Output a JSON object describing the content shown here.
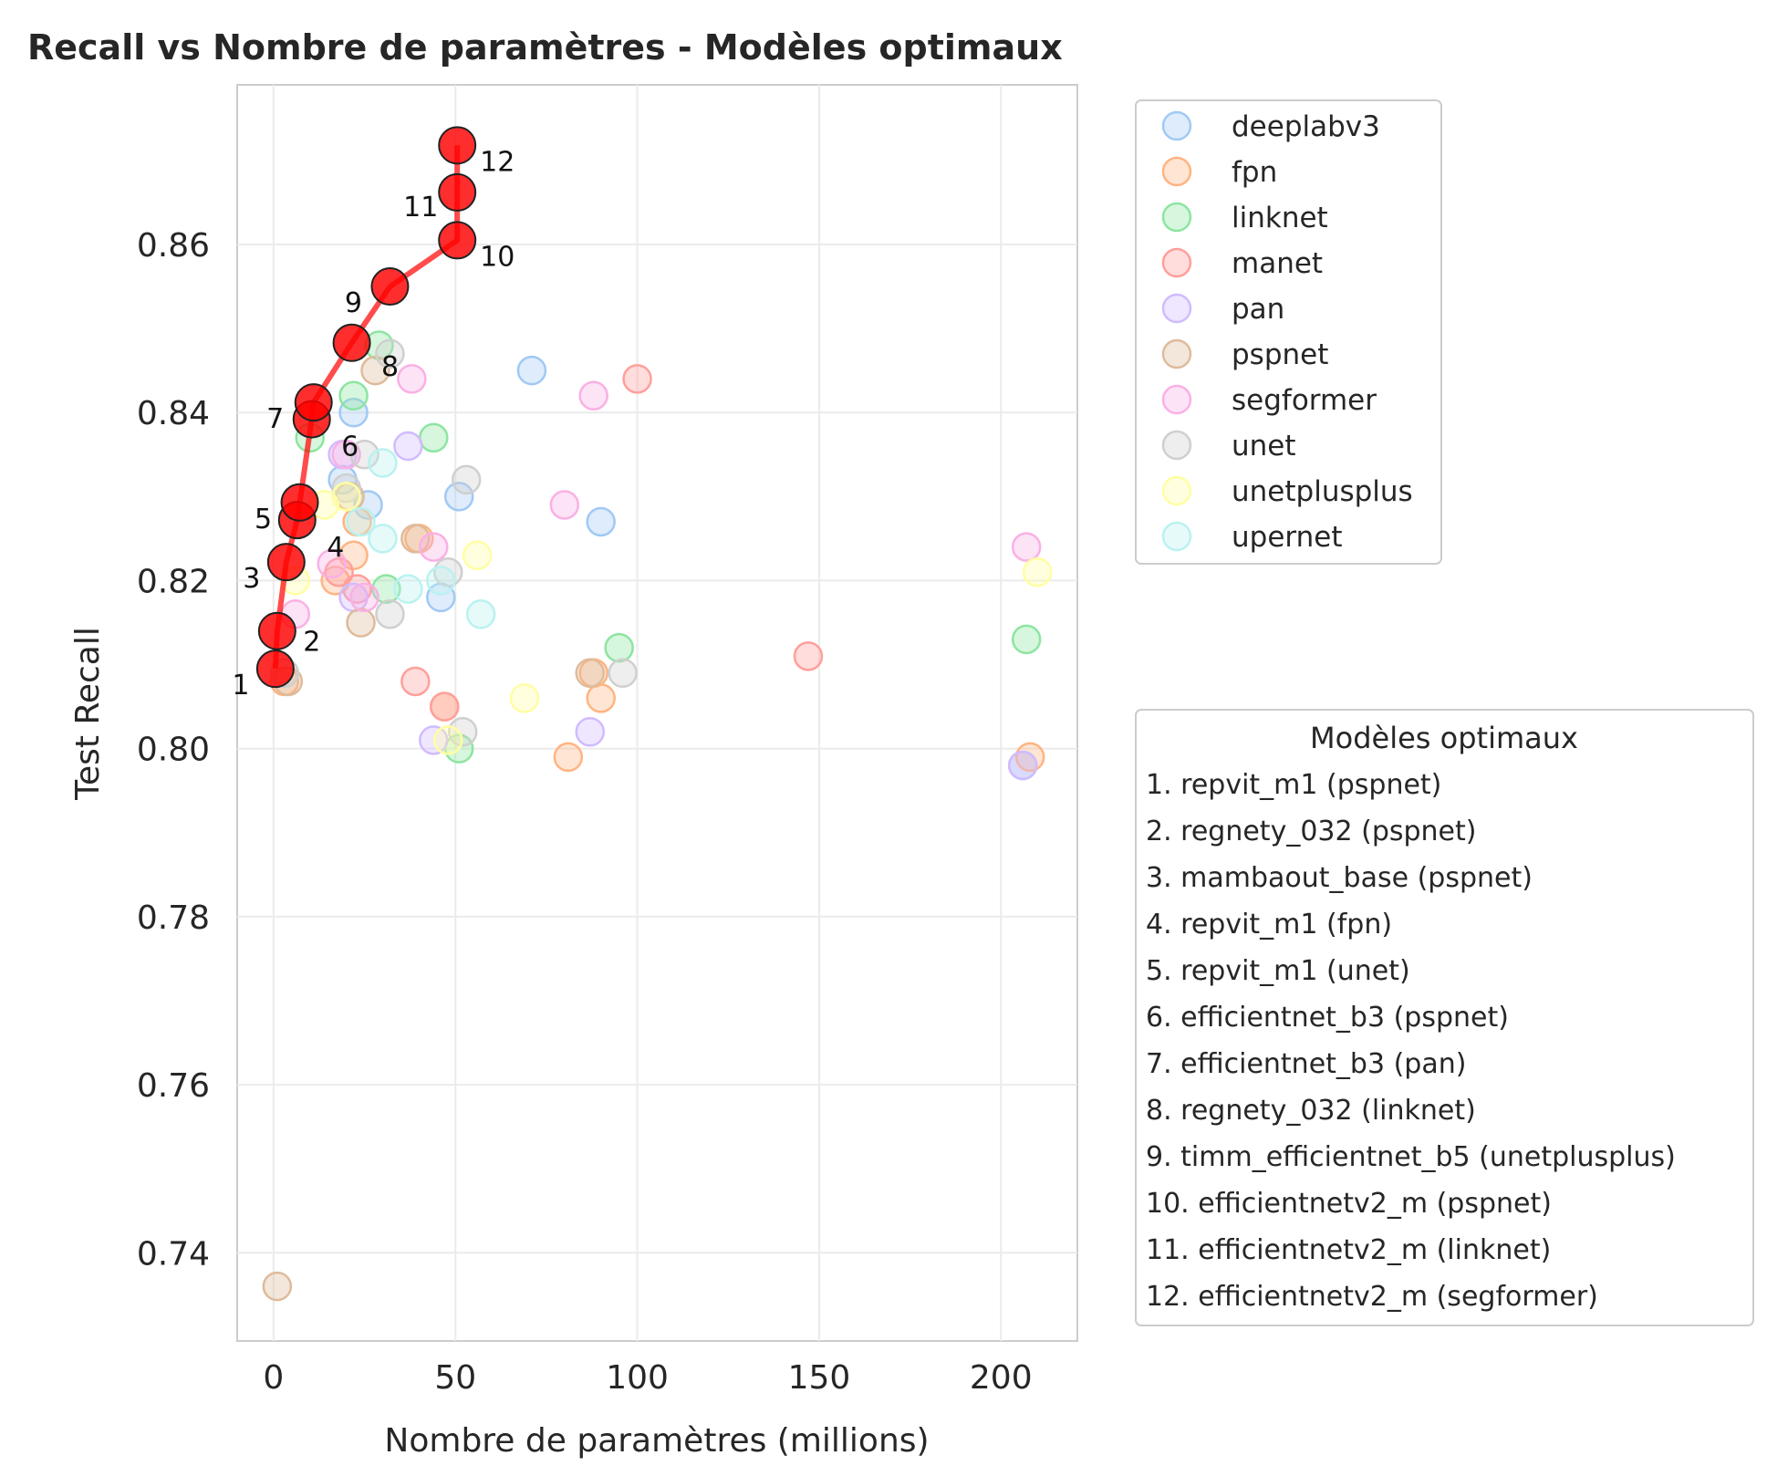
{
  "chart_data": {
    "type": "scatter",
    "title": "Recall vs Nombre de paramètres - Modèles optimaux",
    "xlabel": "Nombre de paramètres (millions)",
    "ylabel": "Test Recall",
    "xlim": [
      -10,
      221
    ],
    "ylim": [
      0.7295,
      0.879
    ],
    "xticks": [
      0,
      50,
      100,
      150,
      200
    ],
    "xtick_labels": [
      "0",
      "50",
      "100",
      "150",
      "200"
    ],
    "yticks": [
      0.74,
      0.76,
      0.78,
      0.8,
      0.82,
      0.84,
      0.86
    ],
    "ytick_labels": [
      "0.74",
      "0.76",
      "0.78",
      "0.80",
      "0.82",
      "0.84",
      "0.86"
    ],
    "grid": true,
    "legend": {
      "placement": "outside-right-top"
    },
    "series": [
      {
        "name": "deeplabv3",
        "color": "#a1c9f4",
        "points": [
          [
            19,
            0.832
          ],
          [
            22,
            0.84
          ],
          [
            26,
            0.829
          ],
          [
            46,
            0.818
          ],
          [
            51,
            0.83
          ],
          [
            71,
            0.845
          ],
          [
            90,
            0.827
          ],
          [
            206,
            0.798
          ]
        ]
      },
      {
        "name": "fpn",
        "color": "#ffb482",
        "points": [
          [
            3,
            0.808
          ],
          [
            17,
            0.82
          ],
          [
            22,
            0.823
          ],
          [
            23,
            0.827
          ],
          [
            40,
            0.825
          ],
          [
            47,
            0.805
          ],
          [
            81,
            0.799
          ],
          [
            88,
            0.809
          ],
          [
            90,
            0.806
          ],
          [
            208,
            0.799
          ]
        ]
      },
      {
        "name": "linknet",
        "color": "#8de5a1",
        "points": [
          [
            10,
            0.837
          ],
          [
            22,
            0.842
          ],
          [
            29,
            0.848
          ],
          [
            31,
            0.819
          ],
          [
            44,
            0.837
          ],
          [
            51,
            0.8
          ],
          [
            95,
            0.812
          ],
          [
            207,
            0.813
          ]
        ]
      },
      {
        "name": "manet",
        "color": "#ff9f9b",
        "points": [
          [
            18,
            0.821
          ],
          [
            23,
            0.819
          ],
          [
            39,
            0.808
          ],
          [
            47,
            0.805
          ],
          [
            100,
            0.844
          ],
          [
            147,
            0.811
          ]
        ]
      },
      {
        "name": "pan",
        "color": "#d0bbff",
        "points": [
          [
            19,
            0.835
          ],
          [
            22,
            0.818
          ],
          [
            37,
            0.836
          ],
          [
            44,
            0.801
          ],
          [
            87,
            0.802
          ],
          [
            206,
            0.798
          ]
        ]
      },
      {
        "name": "pspnet",
        "color": "#debb9b",
        "points": [
          [
            1,
            0.736
          ],
          [
            4,
            0.808
          ],
          [
            21,
            0.83
          ],
          [
            24,
            0.815
          ],
          [
            28,
            0.845
          ],
          [
            39,
            0.825
          ],
          [
            87,
            0.809
          ]
        ]
      },
      {
        "name": "segformer",
        "color": "#fab0e4",
        "points": [
          [
            6,
            0.816
          ],
          [
            16,
            0.822
          ],
          [
            20,
            0.835
          ],
          [
            25,
            0.818
          ],
          [
            38,
            0.844
          ],
          [
            44,
            0.824
          ],
          [
            80,
            0.829
          ],
          [
            88,
            0.842
          ],
          [
            207,
            0.824
          ]
        ]
      },
      {
        "name": "unet",
        "color": "#cfcfcf",
        "points": [
          [
            3,
            0.809
          ],
          [
            20,
            0.831
          ],
          [
            25,
            0.835
          ],
          [
            32,
            0.816
          ],
          [
            32,
            0.847
          ],
          [
            48,
            0.821
          ],
          [
            52,
            0.802
          ],
          [
            53,
            0.832
          ],
          [
            96,
            0.809
          ]
        ]
      },
      {
        "name": "unetplusplus",
        "color": "#fffea3",
        "points": [
          [
            6,
            0.82
          ],
          [
            14,
            0.829
          ],
          [
            20,
            0.83
          ],
          [
            48,
            0.801
          ],
          [
            56,
            0.823
          ],
          [
            69,
            0.806
          ],
          [
            210,
            0.821
          ]
        ]
      },
      {
        "name": "upernet",
        "color": "#b9f2f0",
        "points": [
          [
            24,
            0.827
          ],
          [
            30,
            0.834
          ],
          [
            30,
            0.825
          ],
          [
            37,
            0.819
          ],
          [
            46,
            0.82
          ],
          [
            57,
            0.816
          ]
        ]
      }
    ],
    "optimal": {
      "name": "Modèles optimaux",
      "color": "#ff0000",
      "points": [
        {
          "x": 0.5,
          "y": 0.8095,
          "label": "1",
          "model": "1. repvit_m1 (pspnet)"
        },
        {
          "x": 1.0,
          "y": 0.814,
          "label": "2",
          "model": "2. regnety_032 (pspnet)"
        },
        {
          "x": 3.5,
          "y": 0.8222,
          "label": "3",
          "model": "3. mambaout_base (pspnet)"
        },
        {
          "x": 6.5,
          "y": 0.8272,
          "label": "4",
          "model": "4. repvit_m1 (fpn)"
        },
        {
          "x": 7.2,
          "y": 0.8293,
          "label": "5",
          "model": "5. repvit_m1 (unet)"
        },
        {
          "x": 10.5,
          "y": 0.8392,
          "label": "6",
          "model": "6. efficientnet_b3 (pspnet)"
        },
        {
          "x": 11.0,
          "y": 0.8412,
          "label": "7",
          "model": "7. efficientnet_b3 (pan)"
        },
        {
          "x": 21.5,
          "y": 0.8483,
          "label": "8",
          "model": "8. regnety_032 (linknet)"
        },
        {
          "x": 32.0,
          "y": 0.855,
          "label": "9",
          "model": "9. timm_efficientnet_b5 (unetplusplus)"
        },
        {
          "x": 50.5,
          "y": 0.8605,
          "label": "10",
          "model": "10. efficientnetv2_m (pspnet)"
        },
        {
          "x": 50.5,
          "y": 0.8662,
          "label": "11",
          "model": "11. efficientnetv2_m (linknet)"
        },
        {
          "x": 50.5,
          "y": 0.8718,
          "label": "12",
          "model": "12. efficientnetv2_m (segformer)"
        }
      ]
    }
  }
}
